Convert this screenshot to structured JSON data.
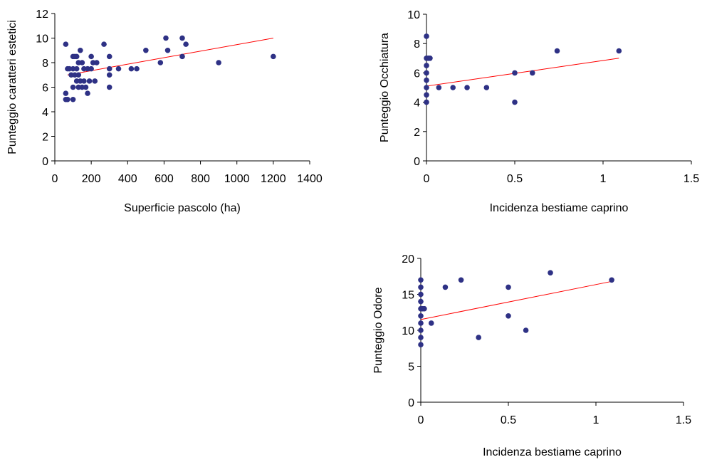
{
  "chart_data": [
    {
      "type": "scatter",
      "title": "",
      "xlabel": "Superficie pascolo (ha)",
      "ylabel": "Punteggio caratteri estetici",
      "xlim": [
        0,
        1400
      ],
      "ylim": [
        0,
        12
      ],
      "xticks": [
        "0",
        "200",
        "400",
        "600",
        "800",
        "1000",
        "1200",
        "1400"
      ],
      "yticks": [
        "0",
        "2",
        "4",
        "6",
        "8",
        "10",
        "12"
      ],
      "grid": false,
      "marker_color": "#2e3185",
      "trendline_color": "#ff0000",
      "trendline": {
        "x": [
          70,
          1200
        ],
        "y": [
          7.0,
          10.0
        ]
      },
      "points": [
        [
          60,
          9.5
        ],
        [
          60,
          5.5
        ],
        [
          60,
          5.0
        ],
        [
          70,
          7.5
        ],
        [
          70,
          5.0
        ],
        [
          80,
          7.5
        ],
        [
          90,
          7.0
        ],
        [
          100,
          8.5
        ],
        [
          100,
          7.5
        ],
        [
          100,
          6.0
        ],
        [
          100,
          5.0
        ],
        [
          110,
          8.5
        ],
        [
          110,
          7.0
        ],
        [
          120,
          7.5
        ],
        [
          120,
          6.5
        ],
        [
          120,
          8.5
        ],
        [
          130,
          8.0
        ],
        [
          130,
          6.0
        ],
        [
          130,
          7.0
        ],
        [
          140,
          9.0
        ],
        [
          140,
          6.5
        ],
        [
          150,
          8.0
        ],
        [
          150,
          6.0
        ],
        [
          160,
          7.5
        ],
        [
          160,
          6.5
        ],
        [
          170,
          6.0
        ],
        [
          180,
          5.5
        ],
        [
          180,
          7.5
        ],
        [
          190,
          6.5
        ],
        [
          200,
          8.5
        ],
        [
          200,
          7.5
        ],
        [
          210,
          8.0
        ],
        [
          220,
          6.5
        ],
        [
          230,
          8.0
        ],
        [
          270,
          9.5
        ],
        [
          300,
          8.5
        ],
        [
          300,
          7.5
        ],
        [
          300,
          7.0
        ],
        [
          300,
          6.0
        ],
        [
          350,
          7.5
        ],
        [
          420,
          7.5
        ],
        [
          450,
          7.5
        ],
        [
          500,
          9.0
        ],
        [
          580,
          8.0
        ],
        [
          610,
          10.0
        ],
        [
          620,
          9.0
        ],
        [
          700,
          10.0
        ],
        [
          700,
          8.5
        ],
        [
          720,
          9.5
        ],
        [
          900,
          8.0
        ],
        [
          1200,
          8.5
        ]
      ]
    },
    {
      "type": "scatter",
      "title": "",
      "xlabel": "Incidenza bestiame caprino",
      "ylabel": "Punteggio Occhiatura",
      "xlim": [
        0,
        1.5
      ],
      "ylim": [
        0,
        10
      ],
      "xticks": [
        "0",
        "0.5",
        "1",
        "1.5"
      ],
      "yticks": [
        "0",
        "2",
        "4",
        "6",
        "8",
        "10"
      ],
      "grid": false,
      "marker_color": "#2e3185",
      "trendline_color": "#ff0000",
      "trendline": {
        "x": [
          0,
          1.09
        ],
        "y": [
          5.1,
          7.0
        ]
      },
      "points": [
        [
          0,
          8.5
        ],
        [
          0,
          7.0
        ],
        [
          0,
          6.5
        ],
        [
          0,
          6.0
        ],
        [
          0,
          5.5
        ],
        [
          0,
          5.0
        ],
        [
          0,
          4.5
        ],
        [
          0,
          4.0
        ],
        [
          0.01,
          7.0
        ],
        [
          0.02,
          7.0
        ],
        [
          0.07,
          5.0
        ],
        [
          0.15,
          5.0
        ],
        [
          0.23,
          5.0
        ],
        [
          0.34,
          5.0
        ],
        [
          0.5,
          6.0
        ],
        [
          0.5,
          4.0
        ],
        [
          0.6,
          6.0
        ],
        [
          0.74,
          7.5
        ],
        [
          1.09,
          7.5
        ]
      ]
    },
    {
      "type": "scatter",
      "title": "",
      "xlabel": "Incidenza bestiame caprino",
      "ylabel": "Punteggio Odore",
      "xlim": [
        0,
        1.5
      ],
      "ylim": [
        0,
        20
      ],
      "xticks": [
        "0",
        "0.5",
        "1",
        "1.5"
      ],
      "yticks": [
        "0",
        "5",
        "10",
        "15",
        "20"
      ],
      "grid": false,
      "marker_color": "#2e3185",
      "trendline_color": "#ff0000",
      "trendline": {
        "x": [
          0,
          1.09
        ],
        "y": [
          11.5,
          16.8
        ]
      },
      "points": [
        [
          0,
          17
        ],
        [
          0,
          16
        ],
        [
          0,
          15
        ],
        [
          0,
          14
        ],
        [
          0,
          13
        ],
        [
          0,
          12
        ],
        [
          0,
          11
        ],
        [
          0,
          10
        ],
        [
          0,
          9
        ],
        [
          0,
          8
        ],
        [
          0.01,
          13
        ],
        [
          0.02,
          13
        ],
        [
          0.06,
          11
        ],
        [
          0.14,
          16
        ],
        [
          0.23,
          17
        ],
        [
          0.33,
          9
        ],
        [
          0.5,
          16
        ],
        [
          0.5,
          12
        ],
        [
          0.6,
          10
        ],
        [
          0.74,
          18
        ],
        [
          1.09,
          17
        ]
      ]
    }
  ]
}
